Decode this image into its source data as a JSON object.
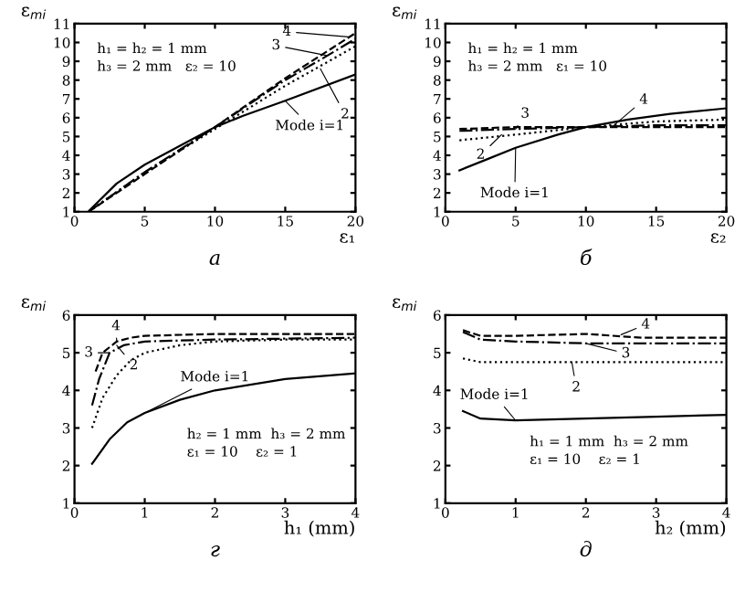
{
  "chart_data": [
    {
      "type": "line",
      "title": "а",
      "xlabel": "ε₁",
      "ylabel": "ε$_{mi}$",
      "xlim": [
        0,
        20
      ],
      "ylim": [
        1,
        11
      ],
      "xticks": [
        0,
        5,
        10,
        15,
        20
      ],
      "yticks": [
        1,
        2,
        3,
        4,
        5,
        6,
        7,
        8,
        9,
        10,
        11
      ],
      "grid": false,
      "legend": false,
      "series": [
        {
          "color": "#000000",
          "line_style": "solid",
          "x": [
            1.1,
            3,
            5,
            8,
            10,
            12,
            15,
            20
          ],
          "values": [
            1.1,
            2.5,
            3.5,
            4.7,
            5.5,
            6.1,
            6.9,
            8.3
          ]
        },
        {
          "color": "#000000",
          "line_style": "dotted",
          "x": [
            1,
            5,
            10,
            15,
            20
          ],
          "values": [
            1.0,
            3.1,
            5.4,
            7.7,
            9.8
          ]
        },
        {
          "color": "#000000",
          "line_style": "dashdot",
          "x": [
            1,
            5,
            10,
            15,
            18,
            20
          ],
          "values": [
            1.0,
            3.1,
            5.5,
            8.0,
            9.3,
            10.2
          ]
        },
        {
          "color": "#000000",
          "line_style": "dashed",
          "x": [
            1,
            5,
            10,
            15,
            20
          ],
          "values": [
            1.0,
            3.0,
            5.5,
            8.1,
            10.5
          ]
        }
      ],
      "annotations": [
        {
          "text": "Mode i=1",
          "x": 15,
          "y": 6.9
        },
        {
          "text": "2",
          "x": 17.5,
          "y": 8.6
        },
        {
          "text": "3",
          "x": 18,
          "y": 9.3
        },
        {
          "text": "4",
          "x": 19.5,
          "y": 10.3
        },
        "h₁ = h₂ = 1 mm\nh₃ = 2 mm   ε₂ = 10"
      ]
    },
    {
      "type": "line",
      "title": "б",
      "xlabel": "ε₂",
      "ylabel": "ε$_{mi}$",
      "xlim": [
        0,
        20
      ],
      "ylim": [
        1,
        11
      ],
      "xticks": [
        0,
        5,
        10,
        15,
        20
      ],
      "yticks": [
        1,
        2,
        3,
        4,
        5,
        6,
        7,
        8,
        9,
        10,
        11
      ],
      "grid": false,
      "legend": false,
      "series": [
        {
          "color": "#000000",
          "line_style": "solid",
          "x": [
            1,
            3,
            5,
            8,
            10,
            13,
            16,
            20
          ],
          "values": [
            3.2,
            3.8,
            4.4,
            5.1,
            5.5,
            5.9,
            6.2,
            6.5
          ]
        },
        {
          "color": "#000000",
          "line_style": "dotted",
          "x": [
            1,
            5,
            10,
            15,
            20
          ],
          "values": [
            4.8,
            5.1,
            5.5,
            5.8,
            5.9
          ]
        },
        {
          "color": "#000000",
          "line_style": "dashdot",
          "x": [
            1,
            5,
            10,
            15,
            20
          ],
          "values": [
            5.3,
            5.4,
            5.5,
            5.6,
            5.6
          ]
        },
        {
          "color": "#000000",
          "line_style": "dashed",
          "x": [
            1,
            5,
            10,
            15,
            20
          ],
          "values": [
            5.4,
            5.5,
            5.5,
            5.5,
            5.5
          ]
        }
      ],
      "annotations": [
        {
          "text": "Mode i=1",
          "x": 5,
          "y": 4.4
        },
        {
          "text": "2",
          "x": 4,
          "y": 5.1
        },
        {
          "text": "3",
          "x": 5,
          "y": 5.4
        },
        {
          "text": "4",
          "x": 12,
          "y": 5.6
        },
        "h₁ = h₂ = 1 mm\nh₃ = 2 mm   ε₁ = 10"
      ]
    },
    {
      "type": "line",
      "title": "г",
      "xlabel": "h₁ (mm)",
      "ylabel": "ε$_{mi}$",
      "xlim": [
        0,
        4
      ],
      "ylim": [
        1,
        6
      ],
      "xticks": [
        0,
        1,
        2,
        3,
        4
      ],
      "yticks": [
        1,
        2,
        3,
        4,
        5,
        6
      ],
      "grid": false,
      "legend": false,
      "series": [
        {
          "color": "#000000",
          "line_style": "solid",
          "x": [
            0.25,
            0.5,
            0.75,
            1,
            1.5,
            2,
            3,
            4
          ],
          "values": [
            2.05,
            2.7,
            3.15,
            3.4,
            3.75,
            4.0,
            4.3,
            4.45
          ]
        },
        {
          "color": "#000000",
          "line_style": "dotted",
          "x": [
            0.25,
            0.4,
            0.6,
            0.8,
            1,
            1.5,
            2,
            3,
            4
          ],
          "values": [
            3.0,
            3.8,
            4.4,
            4.8,
            5.0,
            5.2,
            5.3,
            5.35,
            5.35
          ]
        },
        {
          "color": "#000000",
          "line_style": "dashdot",
          "x": [
            0.25,
            0.35,
            0.5,
            0.7,
            1,
            2,
            4
          ],
          "values": [
            3.6,
            4.3,
            5.0,
            5.2,
            5.3,
            5.35,
            5.4
          ]
        },
        {
          "color": "#000000",
          "line_style": "dashed",
          "x": [
            0.3,
            0.4,
            0.6,
            0.8,
            1,
            2,
            4
          ],
          "values": [
            4.5,
            5.0,
            5.3,
            5.4,
            5.45,
            5.5,
            5.5
          ]
        }
      ],
      "annotations": [
        {
          "text": "Mode i=1",
          "x": 1,
          "y": 3.4
        },
        {
          "text": "2",
          "x": 0.6,
          "y": 5.2
        },
        {
          "text": "3",
          "x": 0.5,
          "y": 5.0
        },
        {
          "text": "4",
          "x": 0.6,
          "y": 5.3
        },
        "h₂ = 1 mm  h₃ = 2 mm\nε₁ = 10    ε₂ = 1"
      ]
    },
    {
      "type": "line",
      "title": "д",
      "xlabel": "h₂ (mm)",
      "ylabel": "ε$_{mi}$",
      "xlim": [
        0,
        4
      ],
      "ylim": [
        1,
        6
      ],
      "xticks": [
        0,
        1,
        2,
        3,
        4
      ],
      "yticks": [
        1,
        2,
        3,
        4,
        5,
        6
      ],
      "grid": false,
      "legend": false,
      "series": [
        {
          "color": "#000000",
          "line_style": "solid",
          "x": [
            0.25,
            0.5,
            1,
            2,
            3,
            4
          ],
          "values": [
            3.45,
            3.25,
            3.2,
            3.25,
            3.3,
            3.35
          ]
        },
        {
          "color": "#000000",
          "line_style": "dotted",
          "x": [
            0.25,
            0.5,
            1,
            2,
            4
          ],
          "values": [
            4.85,
            4.75,
            4.75,
            4.75,
            4.75
          ]
        },
        {
          "color": "#000000",
          "line_style": "dashdot",
          "x": [
            0.25,
            0.5,
            1,
            2,
            4
          ],
          "values": [
            5.55,
            5.35,
            5.3,
            5.25,
            5.25
          ]
        },
        {
          "color": "#000000",
          "line_style": "dashed",
          "x": [
            0.25,
            0.5,
            1,
            2,
            2.8,
            4
          ],
          "values": [
            5.6,
            5.45,
            5.45,
            5.5,
            5.4,
            5.4
          ]
        }
      ],
      "annotations": [
        {
          "text": "Mode i=1",
          "x": 1,
          "y": 3.2
        },
        {
          "text": "2",
          "x": 1.8,
          "y": 4.75
        },
        {
          "text": "3",
          "x": 2,
          "y": 5.25
        },
        {
          "text": "4",
          "x": 2.5,
          "y": 5.48
        },
        "h₁ = 1 mm  h₃ = 2 mm\nε₁ = 10    ε₂ = 1"
      ]
    }
  ]
}
